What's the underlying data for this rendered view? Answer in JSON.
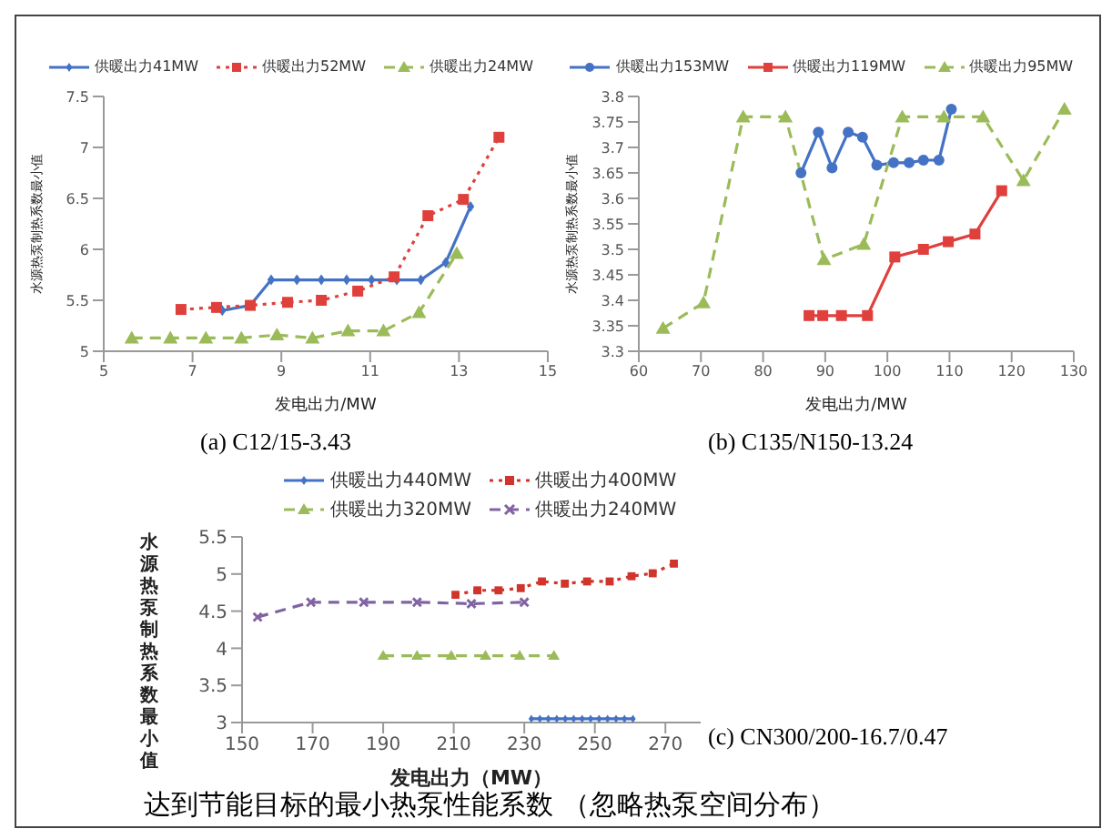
{
  "chart_data": [
    {
      "type": "line",
      "title": "(a) C12/15-3.43",
      "xlabel": "发电出力/MW",
      "ylabel": "水源热泵制热系数最小值",
      "xlim": [
        5,
        15
      ],
      "xticks": [
        5,
        7,
        9,
        11,
        13,
        15
      ],
      "ylim": [
        5,
        7.5
      ],
      "yticks": [
        5,
        5.5,
        6,
        6.5,
        7,
        7.5
      ],
      "grid": false,
      "legend": "top",
      "series": [
        {
          "name": "供暖出力41MW",
          "color": "#4472c4",
          "marker": "diamond",
          "line_style": "solid",
          "x": [
            7.67,
            8.3,
            8.77,
            9.35,
            9.9,
            10.47,
            11.03,
            11.6,
            12.14,
            12.7,
            13.26
          ],
          "values": [
            5.4,
            5.45,
            5.7,
            5.7,
            5.7,
            5.7,
            5.7,
            5.7,
            5.7,
            5.87,
            6.42
          ]
        },
        {
          "name": "供暖出力52MW",
          "color": "#e0403c",
          "marker": "square",
          "line_style": "dotted",
          "x": [
            6.74,
            7.54,
            8.3,
            9.14,
            9.9,
            10.72,
            11.54,
            12.3,
            13.1,
            13.9
          ],
          "values": [
            5.41,
            5.43,
            5.45,
            5.48,
            5.5,
            5.59,
            5.73,
            6.33,
            6.49,
            7.1
          ]
        },
        {
          "name": "供暖出力24MW",
          "color": "#9bbb59",
          "marker": "triangle",
          "line_style": "dashed",
          "x": [
            5.63,
            6.5,
            7.3,
            8.1,
            8.9,
            9.7,
            10.5,
            11.3,
            12.1,
            12.95
          ],
          "values": [
            5.13,
            5.13,
            5.13,
            5.13,
            5.16,
            5.13,
            5.2,
            5.2,
            5.38,
            5.96
          ]
        }
      ]
    },
    {
      "type": "line",
      "title": "(b) C135/N150-13.24",
      "xlabel": "发电出力/MW",
      "ylabel": "水源热泵制热系数最小值",
      "xlim": [
        60,
        130
      ],
      "xticks": [
        60,
        70,
        80,
        90,
        100,
        110,
        120,
        130
      ],
      "ylim": [
        3.3,
        3.8
      ],
      "yticks": [
        3.3,
        3.35,
        3.4,
        3.45,
        3.5,
        3.55,
        3.6,
        3.65,
        3.7,
        3.75,
        3.8
      ],
      "grid": false,
      "legend": "top",
      "series": [
        {
          "name": "供暖出力153MW",
          "color": "#4472c4",
          "marker": "circle",
          "line_style": "solid",
          "x": [
            86.1,
            88.9,
            91.1,
            93.7,
            96,
            98.3,
            101,
            103.5,
            105.8,
            108.3,
            110.3
          ],
          "values": [
            3.65,
            3.73,
            3.66,
            3.73,
            3.72,
            3.665,
            3.67,
            3.67,
            3.675,
            3.675,
            3.775
          ]
        },
        {
          "name": "供暖出力119MW",
          "color": "#e0403c",
          "marker": "square",
          "line_style": "solid",
          "x": [
            87.4,
            89.6,
            92.6,
            96.8,
            101.2,
            105.8,
            109.8,
            114.1,
            118.4
          ],
          "values": [
            3.37,
            3.37,
            3.37,
            3.37,
            3.485,
            3.5,
            3.515,
            3.53,
            3.615
          ]
        },
        {
          "name": "供暖出力95MW",
          "color": "#9bbb59",
          "marker": "triangle",
          "line_style": "dashed",
          "x": [
            63.9,
            70.4,
            76.8,
            83.6,
            89.8,
            96.2,
            102.4,
            109.1,
            115.4,
            121.9,
            128.5
          ],
          "values": [
            3.345,
            3.395,
            3.76,
            3.76,
            3.48,
            3.51,
            3.76,
            3.76,
            3.76,
            3.635,
            3.775
          ]
        }
      ]
    },
    {
      "type": "line",
      "title": "(c) CN300/200-16.7/0.47",
      "xlabel": "发电出力（MW）",
      "ylabel": "水源热泵制热系数最小值",
      "xlim": [
        150,
        280
      ],
      "xticks": [
        150,
        170,
        190,
        210,
        230,
        250,
        270
      ],
      "ylim": [
        3,
        5.5
      ],
      "yticks": [
        3,
        3.5,
        4,
        4.5,
        5,
        5.5
      ],
      "grid": false,
      "legend": "top",
      "annotations": [
        "达到节能目标的最小热泵性能系数 （忽略热泵空间分布）"
      ],
      "series": [
        {
          "name": "供暖出力440MW",
          "color": "#4472c4",
          "marker": "diamond",
          "line_style": "solid",
          "x": [
            232,
            234.4,
            236.8,
            239.2,
            241.6,
            244,
            246.4,
            248.8,
            251.2,
            253.6,
            256,
            258.4,
            260.8
          ],
          "values": [
            3.05,
            3.05,
            3.05,
            3.05,
            3.05,
            3.05,
            3.05,
            3.05,
            3.05,
            3.05,
            3.05,
            3.05,
            3.05
          ]
        },
        {
          "name": "供暖出力400MW",
          "color": "#d0342c",
          "marker": "square",
          "line_style": "dotted",
          "x": [
            210.5,
            216.7,
            222.7,
            229,
            235,
            241.5,
            247.8,
            254.2,
            260.4,
            266.4,
            272.4
          ],
          "values": [
            4.72,
            4.78,
            4.78,
            4.81,
            4.9,
            4.87,
            4.9,
            4.9,
            4.97,
            5.01,
            5.14
          ]
        },
        {
          "name": "供暖出力320MW",
          "color": "#9bbb59",
          "marker": "triangle",
          "line_style": "dashed",
          "x": [
            190,
            199.6,
            209.3,
            219,
            228.7,
            238.4
          ],
          "values": [
            3.9,
            3.9,
            3.9,
            3.9,
            3.9,
            3.9
          ]
        },
        {
          "name": "供暖出力240MW",
          "color": "#8064a2",
          "marker": "cross",
          "line_style": "dashed",
          "x": [
            154.4,
            169.5,
            184.5,
            199.6,
            215,
            230
          ],
          "values": [
            4.42,
            4.62,
            4.62,
            4.62,
            4.6,
            4.62
          ]
        }
      ]
    }
  ]
}
